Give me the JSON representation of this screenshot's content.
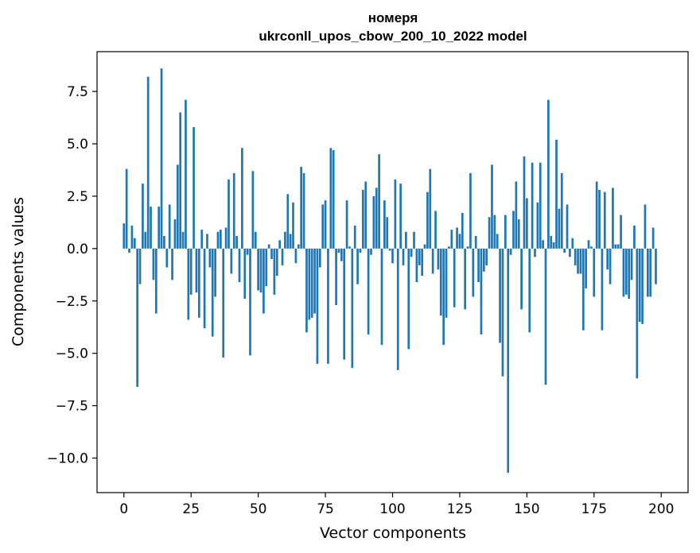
{
  "chart_data": {
    "type": "bar",
    "title_line1": "номеря",
    "title_line2": "ukrconll_upos_cbow_200_10_2022 model",
    "xlabel": "Vector components",
    "ylabel": "Components values",
    "xlim": [
      -10,
      210
    ],
    "ylim": [
      -11.65,
      9.4
    ],
    "xticks": [
      0,
      25,
      50,
      75,
      100,
      125,
      150,
      175,
      200
    ],
    "xtick_labels": [
      "0",
      "25",
      "50",
      "75",
      "100",
      "125",
      "150",
      "175",
      "200"
    ],
    "yticks": [
      7.5,
      5.0,
      2.5,
      0.0,
      -2.5,
      -5.0,
      -7.5,
      -10.0
    ],
    "ytick_labels": [
      "7.5",
      "5.0",
      "2.5",
      "0.0",
      "−2.5",
      "−5.0",
      "−7.5",
      "−10.0"
    ],
    "color": "#1f77b4",
    "values": [
      1.2,
      3.8,
      -0.2,
      1.1,
      0.5,
      -6.6,
      -1.7,
      3.1,
      0.8,
      8.2,
      2.0,
      -1.5,
      -3.1,
      2.0,
      8.6,
      0.6,
      -0.9,
      2.1,
      -1.5,
      1.4,
      4.0,
      6.5,
      0.8,
      7.1,
      -3.4,
      -2.2,
      5.8,
      -2.1,
      -3.3,
      0.9,
      -3.8,
      0.7,
      -0.9,
      -4.2,
      -2.3,
      0.8,
      0.9,
      -5.2,
      1.0,
      3.3,
      -1.2,
      3.6,
      0.6,
      -1.6,
      4.8,
      -2.4,
      -0.3,
      -5.1,
      3.7,
      0.8,
      -2.0,
      -2.1,
      -3.1,
      -1.8,
      0.2,
      -0.5,
      -2.2,
      -1.3,
      0.4,
      -0.8,
      0.8,
      2.6,
      0.7,
      2.2,
      -0.7,
      0.2,
      3.9,
      3.6,
      -4.0,
      -3.4,
      -3.3,
      -3.1,
      -5.5,
      -0.9,
      2.1,
      2.3,
      -5.5,
      4.8,
      4.7,
      -2.7,
      -0.2,
      -0.6,
      -5.3,
      2.3,
      0.1,
      -5.7,
      1.1,
      -1.7,
      -0.2,
      2.8,
      3.2,
      -4.1,
      -0.3,
      2.5,
      2.9,
      4.5,
      -4.6,
      2.3,
      1.5,
      -0.1,
      -0.7,
      3.3,
      -5.8,
      3.1,
      -0.8,
      0.8,
      -4.8,
      -0.4,
      0.8,
      -1.6,
      -0.8,
      -1.3,
      0.2,
      2.7,
      3.8,
      -1.2,
      1.8,
      -1.0,
      -3.2,
      -4.6,
      -3.3,
      0.1,
      0.9,
      -2.8,
      1.0,
      0.7,
      1.7,
      -2.9,
      0.1,
      3.6,
      -2.3,
      0.6,
      -1.6,
      -4.1,
      -1.1,
      -0.8,
      1.5,
      4.0,
      1.6,
      0.7,
      -4.5,
      -6.1,
      1.6,
      -10.7,
      -0.3,
      1.8,
      3.2,
      1.4,
      -2.9,
      4.4,
      2.4,
      -4.0,
      4.1,
      -0.4,
      2.2,
      4.1,
      0.4,
      -6.5,
      7.1,
      0.6,
      0.3,
      5.2,
      1.9,
      3.6,
      -0.2,
      2.1,
      -0.4,
      0.5,
      -0.8,
      -1.2,
      -1.2,
      -3.9,
      -1.9,
      0.4,
      0.1,
      -2.3,
      3.2,
      2.8,
      -3.9,
      2.7,
      -1.0,
      -1.7,
      2.9,
      0.2,
      0.2,
      1.6,
      -2.3,
      -2.2,
      -2.4,
      -1.5,
      1.1,
      -6.2,
      -3.5,
      -3.6,
      2.1,
      -2.3,
      -2.3,
      1.0,
      -1.7
    ]
  }
}
